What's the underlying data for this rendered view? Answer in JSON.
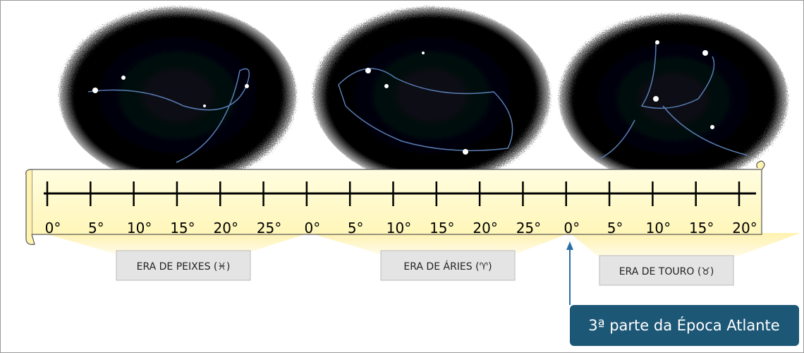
{
  "scale": {
    "ticks": [
      "0°",
      "5°",
      "10°",
      "15°",
      "20°",
      "25°",
      "0°",
      "5°",
      "10°",
      "15°",
      "20°",
      "25°",
      "0°",
      "5°",
      "10°",
      "15°",
      "20°"
    ]
  },
  "eras": [
    "ERA DE PEIXES (♓)",
    "ERA DE ÁRIES (♈)",
    "ERA DE TOURO (♉)"
  ],
  "callout": "3ª parte da Época Atlante"
}
